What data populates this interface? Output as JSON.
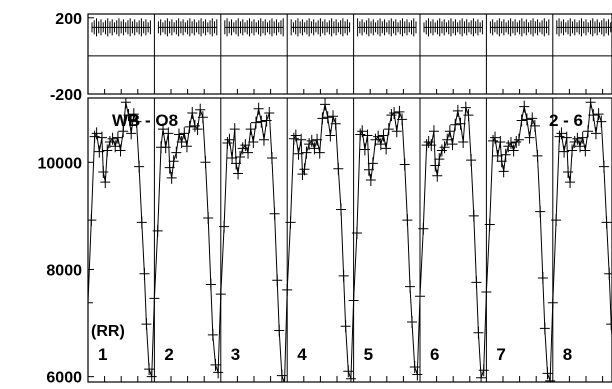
{
  "chart_data": {
    "type": "line",
    "x_range": [
      0,
      8
    ],
    "segments": [
      "1",
      "2",
      "3",
      "4",
      "5",
      "6",
      "7",
      "8"
    ],
    "segment_axis_label": "(RR)",
    "annotations": [
      "WB - O8",
      "2 - 6"
    ],
    "residual_panel": {
      "yticks": [
        {
          "value": 200,
          "label": "200"
        },
        {
          "value": -200,
          "label": "-200"
        }
      ],
      "ylim": [
        -200,
        220
      ],
      "zero_line": 0,
      "residual_offset": 150,
      "residual_scatter": 15
    },
    "main_panel": {
      "yticks": [
        {
          "value": 10000,
          "label": "10000"
        },
        {
          "value": 8000,
          "label": "8000"
        },
        {
          "value": 6000,
          "label": "6000"
        }
      ],
      "ylim": [
        5900,
        11200
      ],
      "marker": "plus",
      "cycle_profile": [
        {
          "phase": 0.0,
          "value": 7500
        },
        {
          "phase": 0.05,
          "value": 8800
        },
        {
          "phase": 0.1,
          "value": 10400
        },
        {
          "phase": 0.13,
          "value": 10500
        },
        {
          "phase": 0.17,
          "value": 10200
        },
        {
          "phase": 0.21,
          "value": 10500
        },
        {
          "phase": 0.23,
          "value": 9900
        },
        {
          "phase": 0.26,
          "value": 9750
        },
        {
          "phase": 0.29,
          "value": 10100
        },
        {
          "phase": 0.33,
          "value": 10300
        },
        {
          "phase": 0.37,
          "value": 10400
        },
        {
          "phase": 0.41,
          "value": 10300
        },
        {
          "phase": 0.45,
          "value": 10500
        },
        {
          "phase": 0.49,
          "value": 10300
        },
        {
          "phase": 0.53,
          "value": 10700
        },
        {
          "phase": 0.57,
          "value": 11000
        },
        {
          "phase": 0.61,
          "value": 10800
        },
        {
          "phase": 0.65,
          "value": 10500
        },
        {
          "phase": 0.69,
          "value": 10900
        },
        {
          "phase": 0.73,
          "value": 10800
        },
        {
          "phase": 0.77,
          "value": 10000
        },
        {
          "phase": 0.81,
          "value": 9000
        },
        {
          "phase": 0.85,
          "value": 7800
        },
        {
          "phase": 0.88,
          "value": 6900
        },
        {
          "phase": 0.92,
          "value": 6100
        },
        {
          "phase": 0.96,
          "value": 6000
        }
      ]
    },
    "grid": true
  }
}
